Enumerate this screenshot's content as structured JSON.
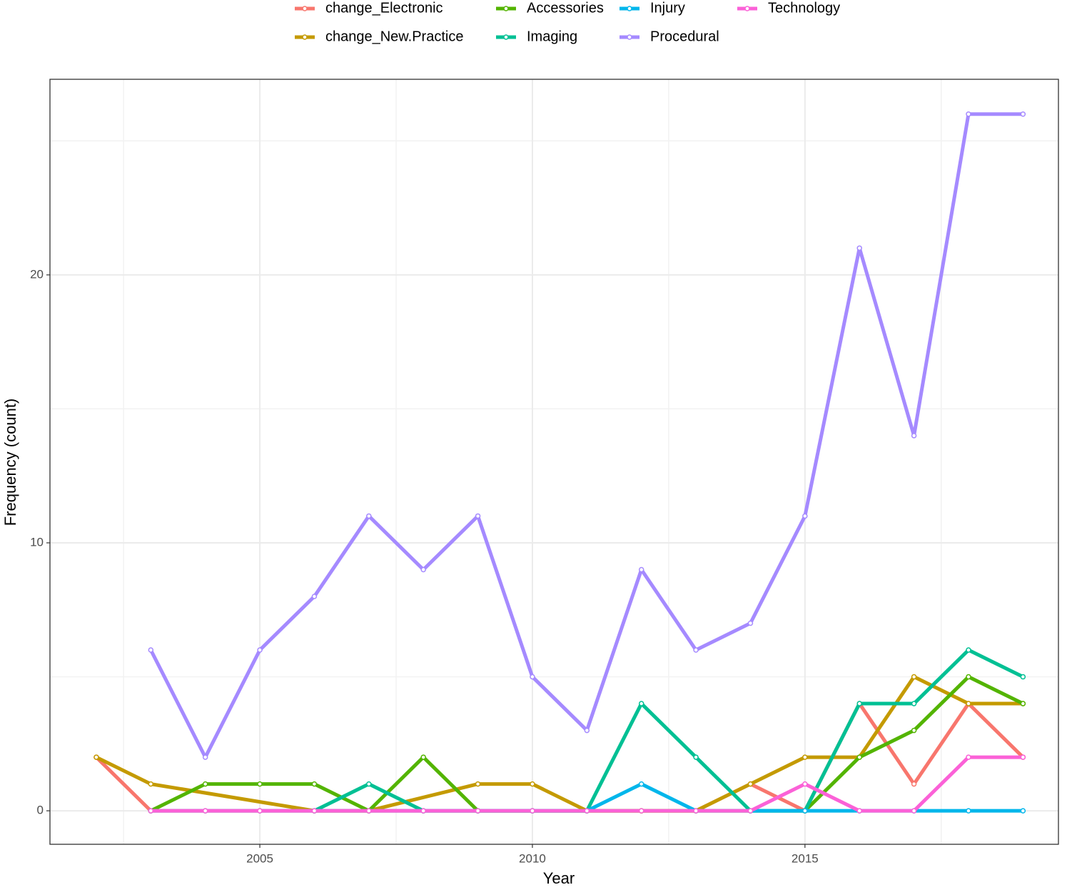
{
  "chart_data": {
    "type": "line",
    "x_label": "Year",
    "y_label": "Frequency (count)",
    "xlim": [
      2001.15,
      2019.65
    ],
    "ylim": [
      -1.25,
      27.3
    ],
    "xticks": [
      2005,
      2010,
      2015
    ],
    "yticks": [
      0,
      10,
      20
    ],
    "grid": true,
    "legend": "top",
    "series": [
      {
        "name": "change_Electronic",
        "color": "#F8766D",
        "x": [
          2002,
          2003,
          2004,
          2005,
          2006,
          2007,
          2008,
          2009,
          2010,
          2011,
          2012,
          2013,
          2014,
          2015,
          2016,
          2017,
          2018,
          2019
        ],
        "values": [
          2,
          0,
          0,
          0,
          0,
          0,
          0,
          0,
          0,
          0,
          0,
          0,
          1,
          0,
          4,
          1,
          4,
          2
        ]
      },
      {
        "name": "change_New.Practice",
        "color": "#C49A00",
        "x": [
          2002,
          2003,
          2006,
          2007,
          2009,
          2010,
          2011,
          2012,
          2013,
          2014,
          2015,
          2016,
          2017,
          2018,
          2019
        ],
        "values": [
          2,
          1,
          0,
          0,
          1,
          1,
          0,
          0,
          0,
          1,
          2,
          2,
          5,
          4,
          4
        ]
      },
      {
        "name": "Accessories",
        "color": "#53B400",
        "x": [
          2003,
          2004,
          2005,
          2006,
          2007,
          2008,
          2009,
          2010,
          2011,
          2012,
          2013,
          2014,
          2015,
          2016,
          2017,
          2018,
          2019
        ],
        "values": [
          0,
          1,
          1,
          1,
          0,
          2,
          0,
          0,
          0,
          0,
          0,
          0,
          0,
          2,
          3,
          5,
          4
        ]
      },
      {
        "name": "Imaging",
        "color": "#00C094",
        "x": [
          2006,
          2007,
          2008,
          2009,
          2010,
          2011,
          2012,
          2013,
          2014,
          2015,
          2016,
          2017,
          2018,
          2019
        ],
        "values": [
          0,
          1,
          0,
          0,
          0,
          0,
          4,
          2,
          0,
          0,
          4,
          4,
          6,
          5
        ]
      },
      {
        "name": "Injury",
        "color": "#00B6EB",
        "x": [
          2003,
          2004,
          2005,
          2006,
          2007,
          2008,
          2009,
          2010,
          2011,
          2012,
          2013,
          2014,
          2015,
          2016,
          2017,
          2018,
          2019
        ],
        "values": [
          0,
          0,
          0,
          0,
          0,
          0,
          0,
          0,
          0,
          1,
          0,
          0,
          0,
          0,
          0,
          0,
          0
        ]
      },
      {
        "name": "Procedural",
        "color": "#A58AFF",
        "x": [
          2003,
          2004,
          2005,
          2006,
          2007,
          2008,
          2009,
          2010,
          2011,
          2012,
          2013,
          2014,
          2015,
          2016,
          2017,
          2018,
          2019
        ],
        "values": [
          6,
          2,
          6,
          8,
          11,
          9,
          11,
          5,
          3,
          9,
          6,
          7,
          11,
          21,
          14,
          26,
          26
        ]
      },
      {
        "name": "Technology",
        "color": "#FB61D7",
        "x": [
          2003,
          2004,
          2005,
          2006,
          2007,
          2008,
          2009,
          2010,
          2011,
          2012,
          2013,
          2014,
          2015,
          2016,
          2017,
          2018,
          2019
        ],
        "values": [
          0,
          0,
          0,
          0,
          0,
          0,
          0,
          0,
          0,
          0,
          0,
          0,
          1,
          0,
          0,
          2,
          2
        ]
      }
    ]
  }
}
